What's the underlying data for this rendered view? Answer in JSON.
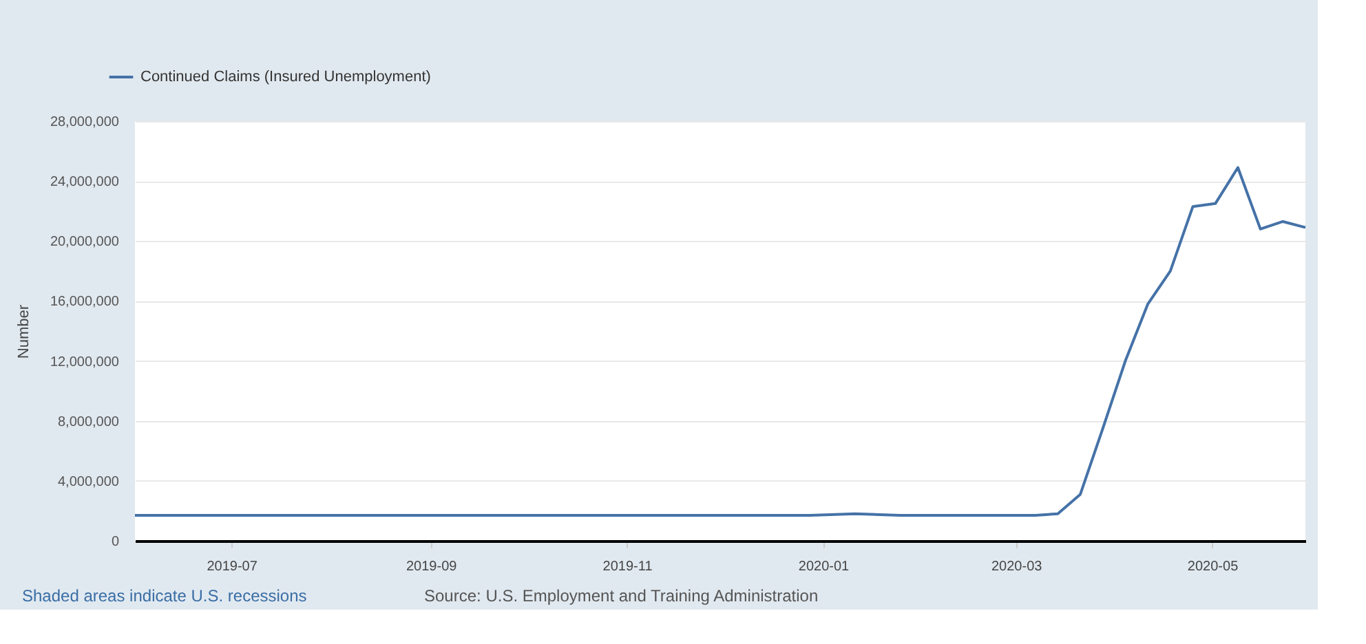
{
  "chart_data": {
    "type": "line",
    "ylabel": "Number",
    "x": [
      "2019-06-01",
      "2019-06-15",
      "2019-06-29",
      "2019-07-13",
      "2019-07-27",
      "2019-08-10",
      "2019-08-24",
      "2019-09-07",
      "2019-09-21",
      "2019-10-05",
      "2019-10-19",
      "2019-11-02",
      "2019-11-16",
      "2019-11-30",
      "2019-12-14",
      "2019-12-28",
      "2020-01-11",
      "2020-01-25",
      "2020-02-08",
      "2020-02-22",
      "2020-03-07",
      "2020-03-14",
      "2020-03-21",
      "2020-03-28",
      "2020-04-04",
      "2020-04-11",
      "2020-04-18",
      "2020-04-25",
      "2020-05-02",
      "2020-05-09",
      "2020-05-16",
      "2020-05-23",
      "2020-05-30"
    ],
    "series": [
      {
        "name": "Continued Claims (Insured Unemployment)",
        "color": "#4572a7",
        "values": [
          1700000,
          1700000,
          1700000,
          1700000,
          1700000,
          1700000,
          1700000,
          1700000,
          1700000,
          1700000,
          1700000,
          1700000,
          1700000,
          1700000,
          1700000,
          1700000,
          1800000,
          1700000,
          1700000,
          1700000,
          1700000,
          1800000,
          3100000,
          7500000,
          12000000,
          15800000,
          18000000,
          22300000,
          22500000,
          24900000,
          20800000,
          21300000,
          20900000
        ]
      }
    ],
    "xlim": [
      "2019-06-01",
      "2020-05-30"
    ],
    "xticks": [
      {
        "value": "2019-07-01",
        "label": "2019-07"
      },
      {
        "value": "2019-09-01",
        "label": "2019-09"
      },
      {
        "value": "2019-11-01",
        "label": "2019-11"
      },
      {
        "value": "2020-01-01",
        "label": "2020-01"
      },
      {
        "value": "2020-03-01",
        "label": "2020-03"
      },
      {
        "value": "2020-05-01",
        "label": "2020-05"
      }
    ],
    "ylim": [
      0,
      28000000
    ],
    "yticks": [
      {
        "value": 0,
        "label": "0"
      },
      {
        "value": 4000000,
        "label": "4,000,000"
      },
      {
        "value": 8000000,
        "label": "8,000,000"
      },
      {
        "value": 12000000,
        "label": "12,000,000"
      },
      {
        "value": 16000000,
        "label": "16,000,000"
      },
      {
        "value": 20000000,
        "label": "20,000,000"
      },
      {
        "value": 24000000,
        "label": "24,000,000"
      },
      {
        "value": 28000000,
        "label": "28,000,000"
      }
    ],
    "grid": "y",
    "legend": "top left",
    "marker": "none",
    "line_style": "solid",
    "annotations": [
      "Shaded areas indicate U.S. recessions",
      "Source: U.S. Employment and Training Administration"
    ]
  }
}
